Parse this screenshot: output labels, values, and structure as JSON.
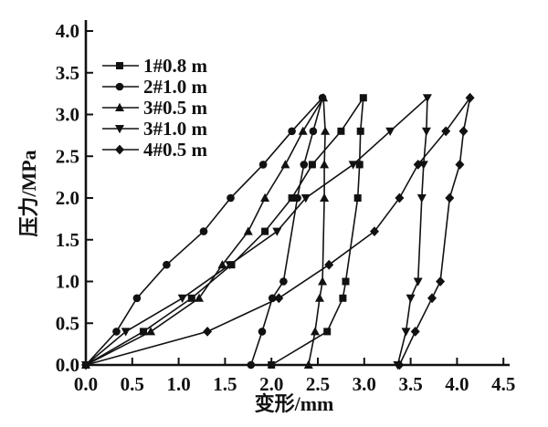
{
  "figure": {
    "background": "#ffffff",
    "ink_color": "#111111"
  },
  "chart_data": {
    "type": "line",
    "title": "",
    "xlabel": "变形/mm",
    "ylabel": "压力/MPa",
    "xlim": [
      0,
      4.5
    ],
    "ylim": [
      0,
      4.0
    ],
    "x_ticks": [
      "0.0",
      "0.5",
      "1.0",
      "1.5",
      "2.0",
      "2.5",
      "3.0",
      "3.5",
      "4.0",
      "4.5"
    ],
    "y_ticks": [
      "0.0",
      "0.5",
      "1.0",
      "1.5",
      "2.0",
      "2.5",
      "3.0",
      "3.5",
      "4.0"
    ],
    "grid": false,
    "legend_position": "upper-left-inside",
    "series": [
      {
        "name": "1#0.8 m",
        "marker": "square",
        "points": [
          [
            0,
            0
          ],
          [
            0.62,
            0.4
          ],
          [
            1.14,
            0.8
          ],
          [
            1.57,
            1.2
          ],
          [
            1.93,
            1.6
          ],
          [
            2.22,
            2.0
          ],
          [
            2.44,
            2.4
          ],
          [
            2.75,
            2.8
          ],
          [
            2.99,
            3.2
          ],
          [
            2.96,
            2.8
          ],
          [
            2.95,
            2.4
          ],
          [
            2.93,
            2.0
          ],
          [
            2.8,
            1.0
          ],
          [
            2.77,
            0.8
          ],
          [
            2.6,
            0.4
          ],
          [
            2.0,
            0
          ]
        ]
      },
      {
        "name": "2#1.0 m",
        "marker": "circle",
        "points": [
          [
            0,
            0
          ],
          [
            0.33,
            0.4
          ],
          [
            0.55,
            0.8
          ],
          [
            0.87,
            1.2
          ],
          [
            1.27,
            1.6
          ],
          [
            1.56,
            2.0
          ],
          [
            1.91,
            2.4
          ],
          [
            2.22,
            2.8
          ],
          [
            2.55,
            3.2
          ],
          [
            2.45,
            2.8
          ],
          [
            2.35,
            2.4
          ],
          [
            2.28,
            2.0
          ],
          [
            2.13,
            1.0
          ],
          [
            2.01,
            0.8
          ],
          [
            1.9,
            0.4
          ],
          [
            1.78,
            0
          ]
        ]
      },
      {
        "name": "3#0.5 m",
        "marker": "triangle-up",
        "points": [
          [
            0,
            0
          ],
          [
            0.7,
            0.4
          ],
          [
            1.22,
            0.8
          ],
          [
            1.47,
            1.2
          ],
          [
            1.75,
            1.6
          ],
          [
            1.93,
            2.0
          ],
          [
            2.15,
            2.4
          ],
          [
            2.34,
            2.8
          ],
          [
            2.56,
            3.2
          ],
          [
            2.58,
            2.8
          ],
          [
            2.57,
            2.4
          ],
          [
            2.57,
            2.0
          ],
          [
            2.55,
            1.0
          ],
          [
            2.52,
            0.8
          ],
          [
            2.47,
            0.4
          ],
          [
            2.4,
            0
          ]
        ]
      },
      {
        "name": "3#1.0 m",
        "marker": "triangle-down",
        "points": [
          [
            0,
            0
          ],
          [
            0.43,
            0.4
          ],
          [
            1.04,
            0.8
          ],
          [
            1.55,
            1.2
          ],
          [
            2.06,
            1.6
          ],
          [
            2.37,
            2.0
          ],
          [
            2.88,
            2.4
          ],
          [
            3.28,
            2.8
          ],
          [
            3.68,
            3.2
          ],
          [
            3.67,
            2.8
          ],
          [
            3.64,
            2.4
          ],
          [
            3.62,
            2.0
          ],
          [
            3.58,
            1.0
          ],
          [
            3.5,
            0.8
          ],
          [
            3.45,
            0.4
          ],
          [
            3.36,
            0
          ]
        ]
      },
      {
        "name": "4#0.5 m",
        "marker": "diamond",
        "points": [
          [
            0,
            0
          ],
          [
            1.31,
            0.4
          ],
          [
            2.08,
            0.8
          ],
          [
            2.62,
            1.2
          ],
          [
            3.11,
            1.6
          ],
          [
            3.38,
            2.0
          ],
          [
            3.58,
            2.4
          ],
          [
            3.88,
            2.8
          ],
          [
            4.14,
            3.2
          ],
          [
            4.07,
            2.8
          ],
          [
            4.03,
            2.4
          ],
          [
            3.92,
            2.0
          ],
          [
            3.82,
            1.0
          ],
          [
            3.73,
            0.8
          ],
          [
            3.55,
            0.4
          ],
          [
            3.38,
            0
          ]
        ]
      }
    ]
  }
}
